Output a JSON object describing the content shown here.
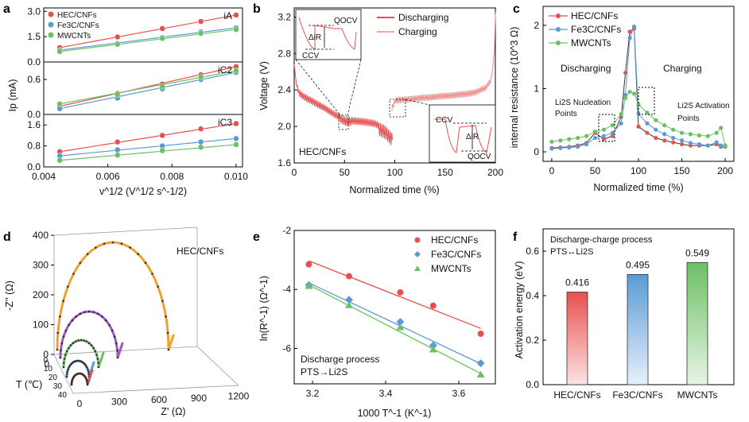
{
  "figure": {
    "panels": [
      "a",
      "b",
      "c",
      "d",
      "e",
      "f"
    ]
  },
  "colors": {
    "red": "#e8504f",
    "blue": "#5b9bd5",
    "green": "#6cc063",
    "orange": "#f0a030",
    "purple": "#a05ac8"
  },
  "chart_data": [
    {
      "panel": "a",
      "type": "scatter",
      "title": "",
      "xlabel": "v^1/2 (V^1/2 s^-1/2)",
      "ylabel": "Ip (mA)",
      "x": [
        0.0045,
        0.0063,
        0.0077,
        0.0089,
        0.01
      ],
      "xlim": [
        0.004,
        0.0102
      ],
      "xticks": [
        "0.004",
        "0.006",
        "0.008",
        "0.010"
      ],
      "legend": [
        "HEC/CNFs",
        "Fe3C/CNFs",
        "MWCNTs"
      ],
      "subplots": [
        {
          "label": "iA",
          "ylim": [
            0,
            3.2
          ],
          "yticks": [
            "0.0",
            "1.5",
            "3.0"
          ],
          "series": [
            {
              "name": "HEC/CNFs",
              "values": [
                0.85,
                1.48,
                1.98,
                2.4,
                2.78
              ]
            },
            {
              "name": "Fe3C/CNFs",
              "values": [
                0.7,
                1.1,
                1.45,
                1.78,
                2.02
              ]
            },
            {
              "name": "MWCNTs",
              "values": [
                0.62,
                1.05,
                1.4,
                1.7,
                1.92
              ]
            }
          ]
        },
        {
          "label": "iC2",
          "ylim": [
            0,
            0.9
          ],
          "yticks": [
            "0.0",
            "0.6"
          ],
          "series": [
            {
              "name": "HEC/CNFs",
              "values": [
                0.14,
                0.36,
                0.52,
                0.68,
                0.82
              ]
            },
            {
              "name": "Fe3C/CNFs",
              "values": [
                0.1,
                0.28,
                0.44,
                0.6,
                0.72
              ]
            },
            {
              "name": "MWCNTs",
              "values": [
                0.18,
                0.34,
                0.48,
                0.64,
                0.75
              ]
            }
          ]
        },
        {
          "label": "iC3",
          "ylim": [
            0,
            2.0
          ],
          "yticks": [
            "0.0",
            "0.8",
            "1.6"
          ],
          "series": [
            {
              "name": "HEC/CNFs",
              "values": [
                0.58,
                0.95,
                1.2,
                1.45,
                1.65
              ]
            },
            {
              "name": "Fe3C/CNFs",
              "values": [
                0.42,
                0.65,
                0.8,
                0.95,
                1.08
              ]
            },
            {
              "name": "MWCNTs",
              "values": [
                0.25,
                0.45,
                0.62,
                0.75,
                0.85
              ]
            }
          ]
        }
      ]
    },
    {
      "panel": "b",
      "type": "line",
      "xlabel": "Normalized time (%)",
      "ylabel": "Voltage (V)",
      "xlim": [
        0,
        200
      ],
      "ylim": [
        1.6,
        3.3
      ],
      "xticks": [
        "0",
        "50",
        "100",
        "150",
        "200"
      ],
      "yticks": [
        "1.6",
        "2.0",
        "2.4",
        "2.8",
        "3.2"
      ],
      "legend": [
        "Discharging",
        "Charging"
      ],
      "annotation": "HEC/CNFs",
      "inset_top": {
        "labels": [
          "QOCV",
          "ΔiR",
          "CCV"
        ]
      },
      "inset_bottom": {
        "labels": [
          "CCV",
          "ΔiR",
          "QOCV"
        ]
      },
      "series": [
        {
          "name": "Discharging",
          "x": [
            0,
            2,
            5,
            10,
            20,
            30,
            40,
            50,
            60,
            70,
            80,
            90,
            95,
            97
          ],
          "values": [
            2.65,
            2.45,
            2.37,
            2.33,
            2.27,
            2.21,
            2.14,
            2.08,
            2.07,
            2.06,
            2.04,
            1.98,
            1.92,
            1.9
          ]
        },
        {
          "name": "Charging",
          "x": [
            97,
            100,
            110,
            120,
            130,
            140,
            150,
            160,
            170,
            180,
            190,
            195,
            198,
            200
          ],
          "values": [
            2.2,
            2.28,
            2.29,
            2.3,
            2.31,
            2.32,
            2.33,
            2.34,
            2.35,
            2.37,
            2.42,
            2.5,
            2.7,
            3.25
          ]
        }
      ]
    },
    {
      "panel": "c",
      "type": "line",
      "xlabel": "Normalized time (%)",
      "ylabel": "internal resistance (10^3 Ω)",
      "xlim": [
        -10,
        210
      ],
      "ylim": [
        -0.15,
        2.3
      ],
      "xticks": [
        "0",
        "50",
        "100",
        "150",
        "200"
      ],
      "yticks": [
        "0",
        "1",
        "2"
      ],
      "legend": [
        "HEC/CNFs",
        "Fe3C/CNFs",
        "MWCNTs"
      ],
      "annotations": [
        "Discharging",
        "Charging",
        "Li2S Nucleation",
        "Points",
        "Li2S Activation",
        "Points"
      ],
      "x": [
        0,
        10,
        20,
        30,
        40,
        50,
        60,
        70,
        80,
        85,
        90,
        95,
        100,
        110,
        120,
        130,
        140,
        150,
        160,
        170,
        180,
        190,
        195,
        200
      ],
      "series": [
        {
          "name": "HEC/CNFs",
          "values": [
            0.06,
            0.07,
            0.08,
            0.1,
            0.14,
            0.3,
            0.2,
            0.25,
            0.55,
            1.25,
            1.9,
            1.95,
            0.4,
            0.3,
            0.22,
            0.18,
            0.15,
            0.12,
            0.1,
            0.1,
            0.1,
            0.12,
            0.08,
            0.1
          ]
        },
        {
          "name": "Fe3C/CNFs",
          "values": [
            0.05,
            0.06,
            0.07,
            0.08,
            0.12,
            0.22,
            0.25,
            0.3,
            0.45,
            0.9,
            1.8,
            1.98,
            0.6,
            0.45,
            0.35,
            0.28,
            0.22,
            0.18,
            0.14,
            0.12,
            0.1,
            0.15,
            0.1,
            0.08
          ]
        },
        {
          "name": "MWCNTs",
          "values": [
            0.16,
            0.18,
            0.2,
            0.22,
            0.25,
            0.32,
            0.35,
            0.42,
            0.6,
            0.85,
            0.95,
            0.92,
            0.75,
            0.62,
            0.5,
            0.42,
            0.35,
            0.3,
            0.28,
            0.26,
            0.25,
            0.3,
            0.38,
            0.1
          ]
        }
      ]
    },
    {
      "panel": "d",
      "type": "line",
      "xlabel": "Z' (Ω)",
      "ylabel": "-Z'' (Ω)",
      "zlabel": "T (℃)",
      "annotation": "HEC/CNFs",
      "zero_label": "0",
      "xticks": [
        "0",
        "300",
        "600",
        "900",
        "1200"
      ],
      "yticks": [
        "0",
        "100",
        "200",
        "300",
        "400"
      ],
      "zticks": [
        "0",
        "10",
        "20",
        "30",
        "40"
      ]
    },
    {
      "panel": "e",
      "type": "scatter",
      "xlabel": "1000 T^-1 (K^-1)",
      "ylabel": "ln(R^-1) (Ω^-1)",
      "xlim": [
        3.15,
        3.7
      ],
      "ylim": [
        -7.2,
        -2.0
      ],
      "xticks": [
        "3.2",
        "3.4",
        "3.6"
      ],
      "yticks": [
        "-2",
        "-4",
        "-6"
      ],
      "legend": [
        "HEC/CNFs",
        "Fe3C/CNFs",
        "MWCNTs"
      ],
      "annotations": [
        "Discharge process",
        "PTS→Li2S"
      ],
      "x": [
        3.19,
        3.3,
        3.44,
        3.53,
        3.66
      ],
      "series": [
        {
          "name": "HEC/CNFs",
          "values": [
            -3.15,
            -3.55,
            -4.1,
            -4.55,
            -5.5
          ]
        },
        {
          "name": "Fe3C/CNFs",
          "values": [
            -3.85,
            -4.35,
            -5.1,
            -5.9,
            -6.5
          ]
        },
        {
          "name": "MWCNTs",
          "values": [
            -3.9,
            -4.55,
            -5.3,
            -6.05,
            -6.9
          ]
        }
      ]
    },
    {
      "panel": "f",
      "type": "bar",
      "xlabel": "",
      "ylabel": "Activation energy (eV)",
      "ylim": [
        0,
        0.7
      ],
      "yticks": [
        "0.0",
        "0.2",
        "0.4",
        "0.6"
      ],
      "categories": [
        "HEC/CNFs",
        "Fe3C/CNFs",
        "MWCNTs"
      ],
      "values": [
        0.416,
        0.495,
        0.549
      ],
      "labels": [
        "0.416",
        "0.495",
        "0.549"
      ],
      "annotations": [
        "Discharge-charge process",
        "PTS↔Li2S"
      ]
    }
  ]
}
